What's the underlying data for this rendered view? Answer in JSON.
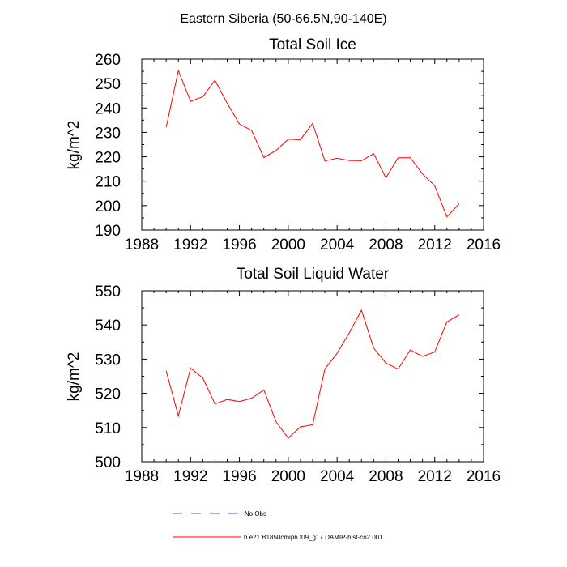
{
  "figure": {
    "suptitle": "Eastern Siberia (50-66.5N,90-140E)"
  },
  "chart_data": [
    {
      "type": "line",
      "title": "Total Soil Ice",
      "xlabel": "",
      "ylabel": "kg/m^2",
      "xlim": [
        1988,
        2016
      ],
      "ylim": [
        190,
        260
      ],
      "xticks": [
        1988,
        1992,
        1996,
        2000,
        2004,
        2008,
        2012,
        2016
      ],
      "yticks": [
        190,
        200,
        210,
        220,
        230,
        240,
        250,
        260
      ],
      "series": [
        {
          "name": "b.e21.B1850cmip6.f09_g17.DAMIP-hist-co2.001",
          "color": "#ff0000",
          "x": [
            1990,
            1991,
            1992,
            1993,
            1994,
            1995,
            1996,
            1997,
            1998,
            1999,
            2000,
            2001,
            2002,
            2003,
            2004,
            2005,
            2006,
            2007,
            2008,
            2009,
            2010,
            2011,
            2012,
            2013,
            2014
          ],
          "values": [
            232,
            255.3,
            242.7,
            244.6,
            251.3,
            241.9,
            233.4,
            230.8,
            219.7,
            222.6,
            227.2,
            227.0,
            233.7,
            218.3,
            219.4,
            218.5,
            218.4,
            221.3,
            211.4,
            219.6,
            219.6,
            213.0,
            208.1,
            195.4,
            200.8
          ]
        }
      ]
    },
    {
      "type": "line",
      "title": "Total Soil Liquid Water",
      "xlabel": "",
      "ylabel": "kg/m^2",
      "xlim": [
        1988,
        2016
      ],
      "ylim": [
        500,
        550
      ],
      "xticks": [
        1988,
        1992,
        1996,
        2000,
        2004,
        2008,
        2012,
        2016
      ],
      "yticks": [
        500,
        510,
        520,
        530,
        540,
        550
      ],
      "series": [
        {
          "name": "b.e21.B1850cmip6.f09_g17.DAMIP-hist-co2.001",
          "color": "#ff0000",
          "x": [
            1990,
            1991,
            1992,
            1993,
            1994,
            1995,
            1996,
            1997,
            1998,
            1999,
            2000,
            2001,
            2002,
            2003,
            2004,
            2005,
            2006,
            2007,
            2008,
            2009,
            2010,
            2011,
            2012,
            2013,
            2014
          ],
          "values": [
            526.6,
            513.4,
            527.4,
            524.5,
            516.9,
            518.2,
            517.6,
            518.6,
            521.0,
            511.7,
            506.9,
            510.2,
            510.8,
            527.1,
            531.7,
            537.7,
            544.3,
            533.2,
            528.9,
            527.1,
            532.7,
            530.8,
            532.1,
            540.9,
            543.0
          ]
        }
      ]
    }
  ],
  "legend": {
    "placement": "bottom",
    "entries": [
      {
        "label": "- No Obs",
        "color": "#5050c8",
        "style": "dashed"
      },
      {
        "label": "b.e21.B1850cmip6.f09_g17.DAMIP-hist-co2.001",
        "color": "#ff0000",
        "style": "solid"
      }
    ]
  }
}
